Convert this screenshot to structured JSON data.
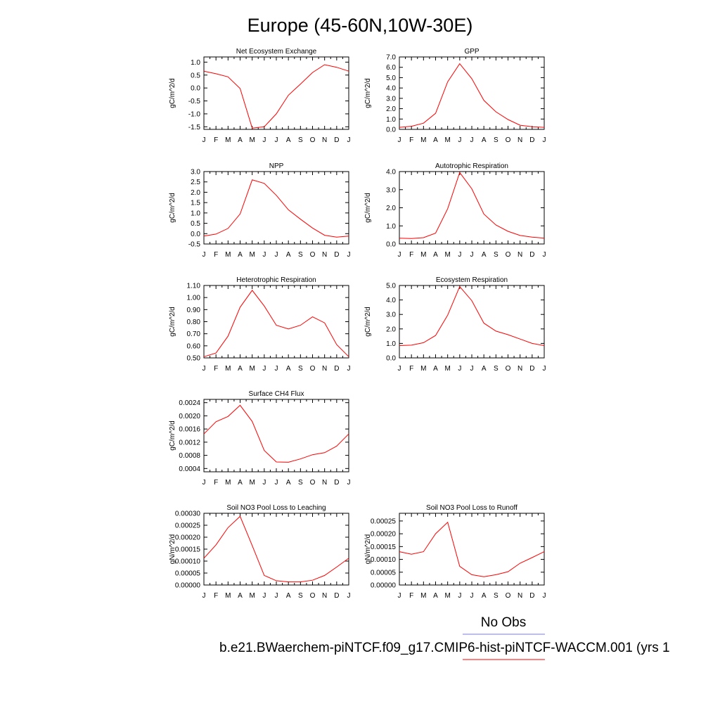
{
  "title": "Europe (45-60N,10W-30E)",
  "legend": {
    "obs_label": "No Obs",
    "obs_color": "#7777ff",
    "model_label": "b.e21.BWaerchem-piNTCF.f09_g17.CMIP6-hist-piNTCF-WACCM.001 (yrs 1",
    "model_color": "#ff0000"
  },
  "chart_data": [
    {
      "type": "line",
      "title": "Net Ecosystem Exchange",
      "ylabel": "gC/m^2/d",
      "categories": [
        "J",
        "F",
        "M",
        "A",
        "M",
        "J",
        "J",
        "A",
        "S",
        "O",
        "N",
        "D",
        "J"
      ],
      "ylim": [
        -1.6,
        1.2
      ],
      "yticks": [
        "1.0",
        "0.5",
        "0.0",
        "-0.5",
        "-1.0",
        "-1.5"
      ],
      "series": [
        {
          "color": "#ff0000",
          "values": [
            0.65,
            0.55,
            0.43,
            -0.02,
            -1.55,
            -1.5,
            -1.0,
            -0.28,
            0.15,
            0.6,
            0.9,
            0.8,
            0.65
          ]
        }
      ]
    },
    {
      "type": "line",
      "title": "GPP",
      "ylabel": "gC/m^2/d",
      "categories": [
        "J",
        "F",
        "M",
        "A",
        "M",
        "J",
        "J",
        "A",
        "S",
        "O",
        "N",
        "D",
        "J"
      ],
      "ylim": [
        0.0,
        7.0
      ],
      "yticks": [
        "7.0",
        "6.0",
        "5.0",
        "4.0",
        "3.0",
        "2.0",
        "1.0",
        "0.0"
      ],
      "series": [
        {
          "color": "#ff0000",
          "values": [
            0.2,
            0.3,
            0.6,
            1.55,
            4.6,
            6.35,
            4.9,
            2.8,
            1.7,
            0.95,
            0.4,
            0.25,
            0.2
          ]
        }
      ]
    },
    {
      "type": "line",
      "title": "NPP",
      "ylabel": "gC/m^2/d",
      "categories": [
        "J",
        "F",
        "M",
        "A",
        "M",
        "J",
        "J",
        "A",
        "S",
        "O",
        "N",
        "D",
        "J"
      ],
      "ylim": [
        -0.5,
        3.0
      ],
      "yticks": [
        "3.0",
        "2.5",
        "2.0",
        "1.5",
        "1.0",
        "0.5",
        "0.0",
        "-0.5"
      ],
      "series": [
        {
          "color": "#ff0000",
          "values": [
            -0.12,
            -0.02,
            0.25,
            0.95,
            2.6,
            2.43,
            1.85,
            1.15,
            0.7,
            0.27,
            -0.08,
            -0.17,
            -0.12
          ]
        }
      ]
    },
    {
      "type": "line",
      "title": "Autotrophic Respiration",
      "ylabel": "gC/m^2/d",
      "categories": [
        "J",
        "F",
        "M",
        "A",
        "M",
        "J",
        "J",
        "A",
        "S",
        "O",
        "N",
        "D",
        "J"
      ],
      "ylim": [
        0.0,
        4.0
      ],
      "yticks": [
        "4.0",
        "3.0",
        "2.0",
        "1.0",
        "0.0"
      ],
      "series": [
        {
          "color": "#ff0000",
          "values": [
            0.32,
            0.3,
            0.35,
            0.6,
            1.95,
            3.95,
            3.05,
            1.65,
            1.05,
            0.7,
            0.47,
            0.38,
            0.32
          ]
        }
      ]
    },
    {
      "type": "line",
      "title": "Heterotrophic Respiration",
      "ylabel": "gC/m^2/d",
      "categories": [
        "J",
        "F",
        "M",
        "A",
        "M",
        "J",
        "J",
        "A",
        "S",
        "O",
        "N",
        "D",
        "J"
      ],
      "ylim": [
        0.5,
        1.1
      ],
      "yticks": [
        "1.10",
        "1.00",
        "0.90",
        "0.80",
        "0.70",
        "0.60",
        "0.50"
      ],
      "series": [
        {
          "color": "#ff0000",
          "values": [
            0.51,
            0.54,
            0.68,
            0.92,
            1.06,
            0.93,
            0.77,
            0.74,
            0.77,
            0.84,
            0.79,
            0.61,
            0.51
          ]
        }
      ]
    },
    {
      "type": "line",
      "title": "Ecosystem Respiration",
      "ylabel": "gC/m^2/d",
      "categories": [
        "J",
        "F",
        "M",
        "A",
        "M",
        "J",
        "J",
        "A",
        "S",
        "O",
        "N",
        "D",
        "J"
      ],
      "ylim": [
        0.0,
        5.0
      ],
      "yticks": [
        "5.0",
        "4.0",
        "3.0",
        "2.0",
        "1.0",
        "0.0"
      ],
      "series": [
        {
          "color": "#ff0000",
          "values": [
            0.85,
            0.88,
            1.05,
            1.55,
            2.95,
            4.92,
            3.95,
            2.4,
            1.85,
            1.6,
            1.3,
            1.0,
            0.85
          ]
        }
      ]
    },
    {
      "type": "line",
      "title": "Surface CH4 Flux",
      "ylabel": "gC/m^2/d",
      "categories": [
        "J",
        "F",
        "M",
        "A",
        "M",
        "J",
        "J",
        "A",
        "S",
        "O",
        "N",
        "D",
        "J"
      ],
      "ylim": [
        0.0003,
        0.0025
      ],
      "yticks": [
        "0.0024",
        "0.0020",
        "0.0016",
        "0.0012",
        "0.0008",
        "0.0004"
      ],
      "series": [
        {
          "color": "#ff0000",
          "values": [
            0.00145,
            0.00182,
            0.00198,
            0.00232,
            0.00183,
            0.00095,
            0.0006,
            0.00059,
            0.00069,
            0.00082,
            0.00088,
            0.00108,
            0.00145
          ]
        }
      ]
    },
    {
      "type": "line",
      "title": "Soil NO3 Pool Loss to Leaching",
      "ylabel": "gN/m^2/d",
      "categories": [
        "J",
        "F",
        "M",
        "A",
        "M",
        "J",
        "J",
        "A",
        "S",
        "O",
        "N",
        "D",
        "J"
      ],
      "ylim": [
        0.0,
        0.0003
      ],
      "yticks": [
        "0.00030",
        "0.00025",
        "0.00020",
        "0.00015",
        "0.00010",
        "0.00005",
        "0.00000"
      ],
      "series": [
        {
          "color": "#ff0000",
          "values": [
            0.000112,
            0.000168,
            0.00024,
            0.000287,
            0.000165,
            4e-05,
            1.8e-05,
            1.3e-05,
            1.3e-05,
            2e-05,
            4e-05,
            7.5e-05,
            0.000112
          ]
        }
      ]
    },
    {
      "type": "line",
      "title": "Soil NO3 Pool Loss to Runoff",
      "ylabel": "gN/m^2/d",
      "categories": [
        "J",
        "F",
        "M",
        "A",
        "M",
        "J",
        "J",
        "A",
        "S",
        "O",
        "N",
        "D",
        "J"
      ],
      "ylim": [
        0.0,
        0.00028
      ],
      "yticks": [
        "0.00025",
        "0.00020",
        "0.00015",
        "0.00010",
        "0.00005",
        "0.00000"
      ],
      "series": [
        {
          "color": "#ff0000",
          "values": [
            0.00013,
            0.00012,
            0.00013,
            0.0002,
            0.000245,
            7.3e-05,
            4e-05,
            3.2e-05,
            4e-05,
            5.2e-05,
            8.5e-05,
            0.000107,
            0.00013
          ]
        }
      ]
    }
  ]
}
